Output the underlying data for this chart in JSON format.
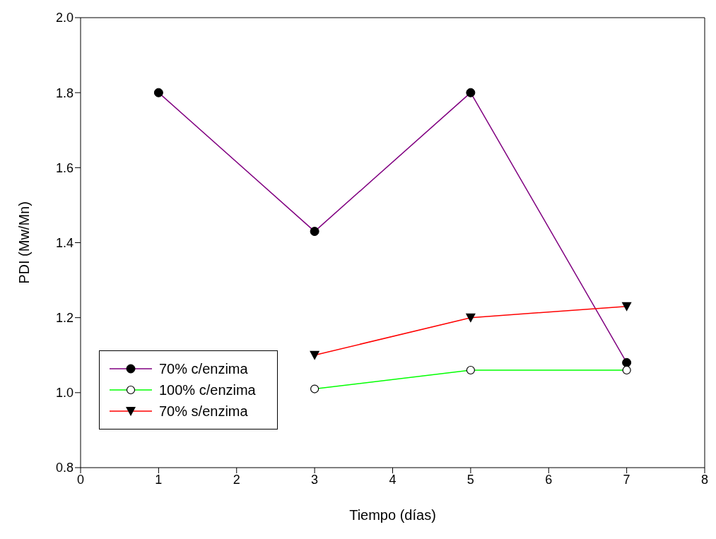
{
  "chart_data": {
    "type": "line",
    "xlabel": "Tiempo (días)",
    "ylabel": "PDI (Mw/Mn)",
    "x": [
      1,
      3,
      5,
      7
    ],
    "series": [
      {
        "name": "70% c/enzima",
        "color": "#800080",
        "values": [
          1.8,
          1.43,
          1.8,
          1.08
        ],
        "marker": "circle"
      },
      {
        "name": "100% c/enzima",
        "color": "#00ff00",
        "values": [
          null,
          1.01,
          1.06,
          1.06
        ],
        "marker": "open circle"
      },
      {
        "name": "70% s/enzima",
        "color": "#ff0000",
        "values": [
          null,
          1.1,
          1.2,
          1.23
        ],
        "marker": "triangle"
      }
    ],
    "xlim": [
      0,
      8
    ],
    "xticks": [
      0,
      1,
      2,
      3,
      4,
      5,
      6,
      7,
      8
    ],
    "ylim": [
      0.8,
      2.0
    ],
    "yticks": [
      0.8,
      {
        "value": 1,
        "label": "1.0"
      },
      1.2,
      1.4,
      1.6,
      1.8,
      {
        "value": 2,
        "label": "2.0"
      }
    ],
    "grid": false,
    "legend": "bottom left",
    "line_style": "solid"
  }
}
